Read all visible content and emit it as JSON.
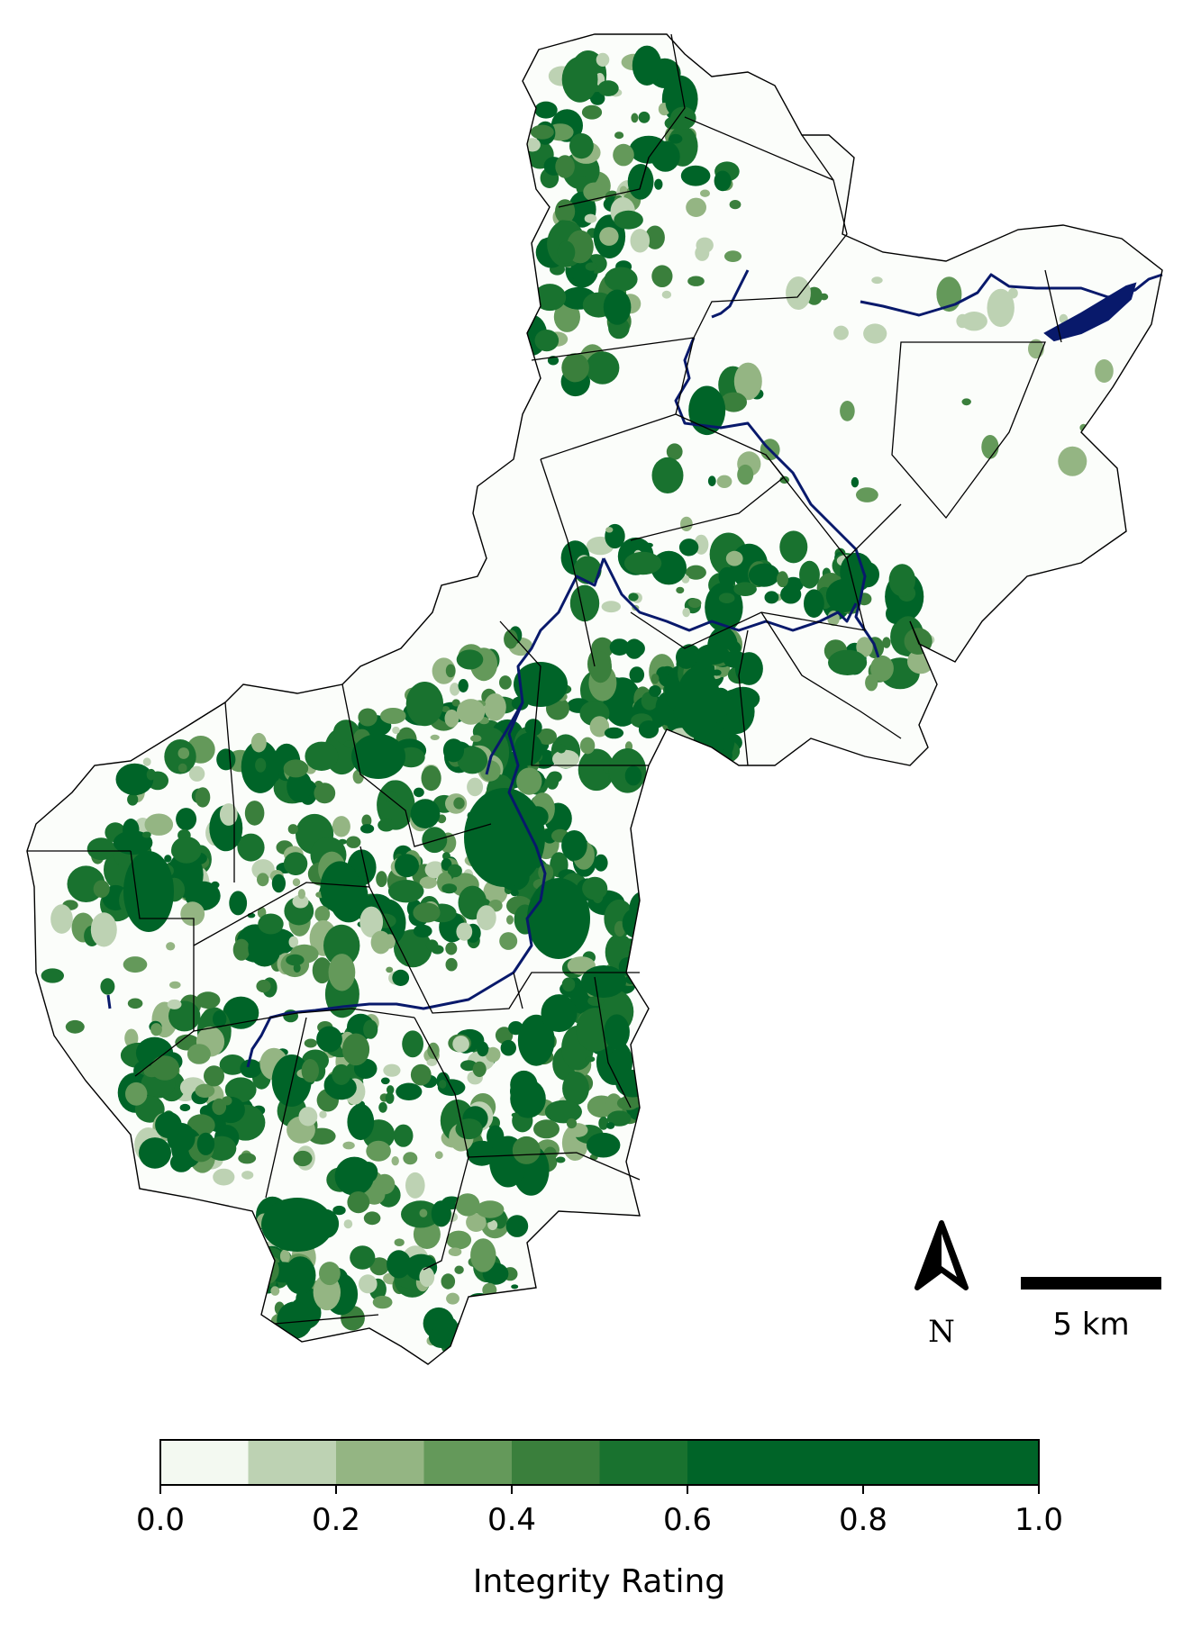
{
  "map": {
    "compass_label": "N",
    "compass_icon": "north-arrow-icon",
    "scale_bar_label": "5 km",
    "water_color": "#08196b",
    "boundary_color": "#000000"
  },
  "colorbar": {
    "title": "Integrity Rating",
    "range": [
      0.0,
      1.0
    ],
    "ticks": [
      "0.0",
      "0.2",
      "0.4",
      "0.6",
      "0.8",
      "1.0"
    ],
    "bins": [
      {
        "from": 0.0,
        "to": 0.1,
        "color": "#f3f9f1"
      },
      {
        "from": 0.1,
        "to": 0.2,
        "color": "#bdd2b3"
      },
      {
        "from": 0.2,
        "to": 0.3,
        "color": "#94b583"
      },
      {
        "from": 0.3,
        "to": 0.4,
        "color": "#64995a"
      },
      {
        "from": 0.4,
        "to": 0.5,
        "color": "#3a7f3c"
      },
      {
        "from": 0.5,
        "to": 0.6,
        "color": "#19722f"
      },
      {
        "from": 0.6,
        "to": 1.0,
        "color": "#006428"
      }
    ]
  }
}
